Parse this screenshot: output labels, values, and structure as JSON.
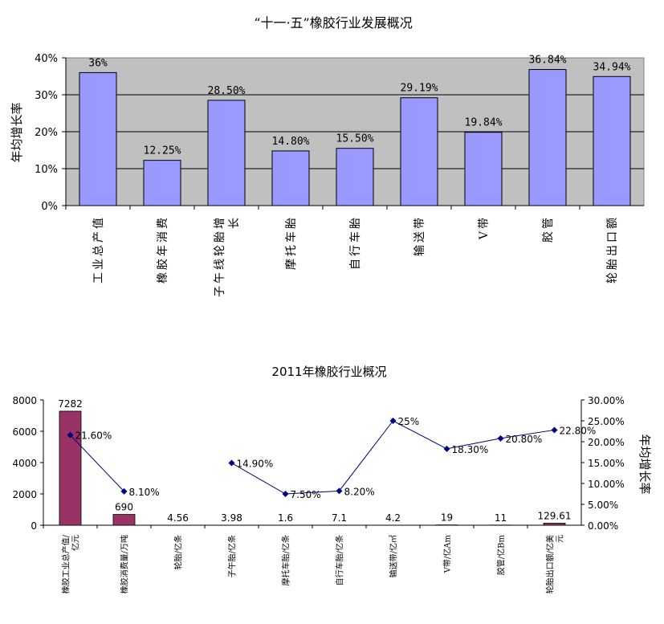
{
  "chart_data": [
    {
      "type": "bar",
      "title": "“十一·五”橡胶行业发展概况",
      "ylabel": "年均增长率",
      "ylim": [
        0,
        40
      ],
      "yticks": [
        "0%",
        "10%",
        "20%",
        "30%",
        "40%"
      ],
      "grid": true,
      "categories": [
        "工业总产值",
        "橡胶年消费",
        "子午线轮胎增长",
        "摩托车胎",
        "自行车胎",
        "输送带",
        "V带",
        "胶管",
        "轮胎出口额"
      ],
      "values": [
        36,
        12.25,
        28.5,
        14.8,
        15.5,
        29.19,
        19.84,
        36.84,
        34.94
      ],
      "data_labels": [
        "36%",
        "12.25%",
        "28.50%",
        "14.80%",
        "15.50%",
        "29.19%",
        "19.84%",
        "36.84%",
        "34.94%"
      ],
      "colors": {
        "bar": "#9999ff",
        "plot_bg": "#c0c0c0"
      }
    },
    {
      "type": "bar",
      "title": "2011年橡胶行业概况",
      "y2label": "年均增长率",
      "ylim": [
        0,
        8000
      ],
      "y2lim": [
        0,
        30
      ],
      "yticks": [
        "0",
        "2000",
        "4000",
        "6000",
        "8000"
      ],
      "y2ticks": [
        "0.00%",
        "5.00%",
        "10.00%",
        "15.00%",
        "20.00%",
        "25.00%",
        "30.00%"
      ],
      "categories": [
        "橡胶工业总产值/亿元",
        "橡胶消费量/万吨",
        "轮胎/亿条",
        "子午胎/亿条",
        "摩托车胎/亿条",
        "自行车胎/亿条",
        "输送带/亿㎡",
        "V带/亿Am",
        "胶管/亿Bm",
        "轮胎出口额/亿美元"
      ],
      "series": [
        {
          "type": "bar",
          "values": [
            7282,
            690,
            4.56,
            3.98,
            1.6,
            7.1,
            4.2,
            19,
            11,
            129.61
          ],
          "data_labels": [
            "7282",
            "690",
            "4.56",
            "3.98",
            "1.6",
            "7.1",
            "4.2",
            "19",
            "11",
            "129.61"
          ]
        },
        {
          "type": "line",
          "axis": "secondary",
          "values": [
            21.6,
            8.1,
            null,
            14.9,
            7.5,
            8.2,
            25,
            18.3,
            20.8,
            22.8
          ],
          "data_labels": [
            "21.60%",
            "8.10%",
            "",
            "14.90%",
            "7.50%",
            "8.20%",
            "25%",
            "18.30%",
            "20.80%",
            "22.80%"
          ]
        }
      ],
      "colors": {
        "bar": "#993366",
        "line": "#000080"
      }
    }
  ]
}
